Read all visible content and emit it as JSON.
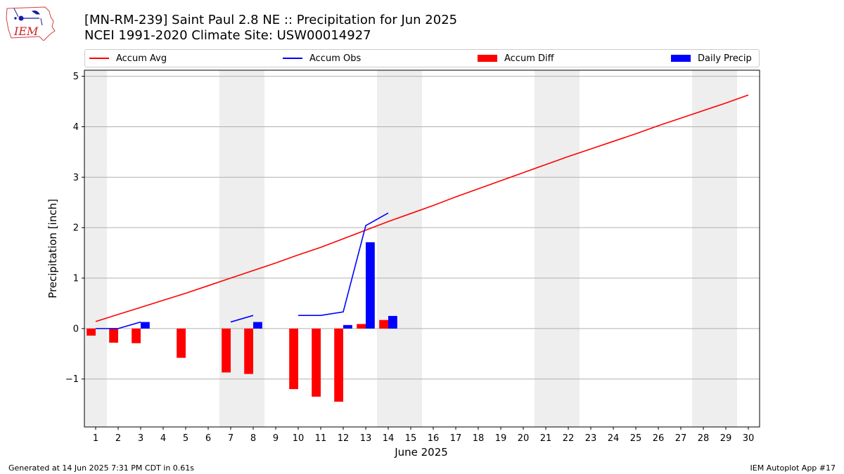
{
  "page": {
    "title_line1": "[MN-RM-239] Saint Paul 2.8 NE :: Precipitation for Jun 2025",
    "title_line2": "NCEI 1991-2020 Climate Site: USW00014927",
    "footer_left": "Generated at 14 Jun 2025 7:31 PM CDT in 0.61s",
    "footer_right": "IEM Autoplot App #17",
    "logo_text": "IEM"
  },
  "legend": {
    "items": [
      {
        "label": "Accum Avg",
        "kind": "line",
        "color": "#ff0000"
      },
      {
        "label": "Accum Obs",
        "kind": "line",
        "color": "#0000ff"
      },
      {
        "label": "Accum Diff",
        "kind": "patch",
        "color": "#ff0000"
      },
      {
        "label": "Daily Precip",
        "kind": "patch",
        "color": "#0000ff"
      }
    ]
  },
  "chart_data": {
    "type": "bar",
    "xlabel": "June 2025",
    "ylabel": "Precipitation [inch]",
    "xlim": [
      0.5,
      30.5
    ],
    "ylim": [
      -1.95,
      5.12
    ],
    "yticks": [
      -1,
      0,
      1,
      2,
      3,
      4,
      5
    ],
    "ytick_labels": [
      "−1",
      "0",
      "1",
      "2",
      "3",
      "4",
      "5"
    ],
    "xticks": [
      1,
      2,
      3,
      4,
      5,
      6,
      7,
      8,
      9,
      10,
      11,
      12,
      13,
      14,
      15,
      16,
      17,
      18,
      19,
      20,
      21,
      22,
      23,
      24,
      25,
      26,
      27,
      28,
      29,
      30
    ],
    "grid": "horizontal",
    "weekend_shading": [
      [
        0.5,
        1.5
      ],
      [
        6.5,
        8.5
      ],
      [
        13.5,
        15.5
      ],
      [
        20.5,
        22.5
      ],
      [
        27.5,
        29.5
      ]
    ],
    "shading_color": "#eeeeee",
    "colors": {
      "avg": "#ff0000",
      "obs": "#0000ff",
      "diff": "#ff0000",
      "daily": "#0000ff"
    },
    "series": [
      {
        "name": "Accum Avg",
        "kind": "line",
        "x": [
          1,
          2,
          3,
          4,
          5,
          6,
          7,
          8,
          9,
          10,
          11,
          12,
          13,
          14,
          15,
          16,
          17,
          18,
          19,
          20,
          21,
          22,
          23,
          24,
          25,
          26,
          27,
          28,
          29,
          30
        ],
        "values": [
          0.14,
          0.28,
          0.42,
          0.56,
          0.7,
          0.85,
          1.0,
          1.15,
          1.3,
          1.46,
          1.61,
          1.78,
          1.95,
          2.12,
          2.28,
          2.44,
          2.61,
          2.77,
          2.93,
          3.09,
          3.25,
          3.41,
          3.56,
          3.71,
          3.86,
          4.02,
          4.17,
          4.32,
          4.47,
          4.63
        ]
      },
      {
        "name": "Accum Obs",
        "kind": "line",
        "segments": [
          {
            "x": [
              1,
              2,
              3
            ],
            "values": [
              0.0,
              0.0,
              0.13
            ]
          },
          {
            "x": [
              7,
              8
            ],
            "values": [
              0.13,
              0.26
            ]
          },
          {
            "x": [
              10,
              11,
              12,
              13,
              14
            ],
            "values": [
              0.26,
              0.26,
              0.33,
              2.04,
              2.29
            ]
          }
        ]
      },
      {
        "name": "Accum Diff",
        "kind": "bar",
        "x": [
          1,
          2,
          3,
          5,
          7,
          8,
          10,
          11,
          12,
          13,
          14
        ],
        "values": [
          -0.14,
          -0.28,
          -0.29,
          -0.58,
          -0.87,
          -0.9,
          -1.2,
          -1.35,
          -1.45,
          0.09,
          0.17
        ]
      },
      {
        "name": "Daily Precip",
        "kind": "bar",
        "x": [
          3,
          8,
          12,
          13,
          14
        ],
        "values": [
          0.13,
          0.13,
          0.07,
          1.71,
          0.25
        ]
      }
    ]
  }
}
